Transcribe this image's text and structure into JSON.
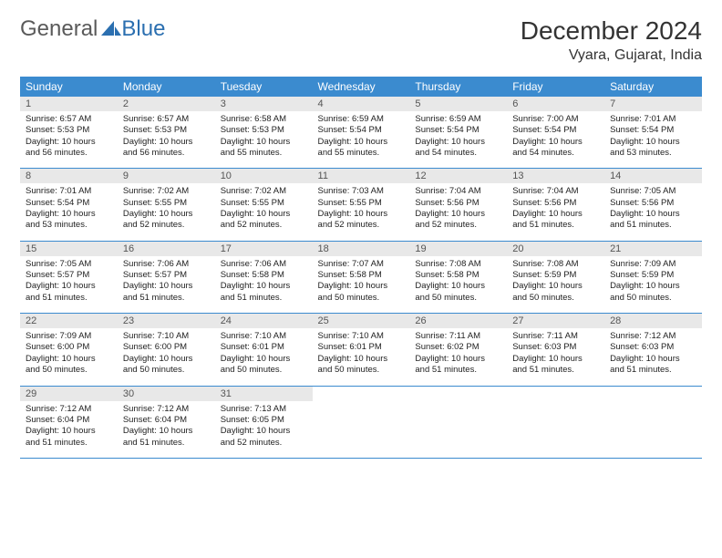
{
  "logo": {
    "text1": "General",
    "text2": "Blue"
  },
  "title": "December 2024",
  "location": "Vyara, Gujarat, India",
  "colors": {
    "header_bg": "#3b8bcf",
    "header_fg": "#ffffff",
    "daynum_bg": "#e8e8e8",
    "row_border": "#3b8bcf",
    "logo_gray": "#5a5a5a",
    "logo_blue": "#2b6fb0"
  },
  "fonts": {
    "title_size": 28,
    "location_size": 16,
    "dow_size": 12,
    "body_size": 9.5
  },
  "dow": [
    "Sunday",
    "Monday",
    "Tuesday",
    "Wednesday",
    "Thursday",
    "Friday",
    "Saturday"
  ],
  "days": [
    {
      "n": 1,
      "sr": "6:57 AM",
      "ss": "5:53 PM",
      "dl": "10 hours and 56 minutes."
    },
    {
      "n": 2,
      "sr": "6:57 AM",
      "ss": "5:53 PM",
      "dl": "10 hours and 56 minutes."
    },
    {
      "n": 3,
      "sr": "6:58 AM",
      "ss": "5:53 PM",
      "dl": "10 hours and 55 minutes."
    },
    {
      "n": 4,
      "sr": "6:59 AM",
      "ss": "5:54 PM",
      "dl": "10 hours and 55 minutes."
    },
    {
      "n": 5,
      "sr": "6:59 AM",
      "ss": "5:54 PM",
      "dl": "10 hours and 54 minutes."
    },
    {
      "n": 6,
      "sr": "7:00 AM",
      "ss": "5:54 PM",
      "dl": "10 hours and 54 minutes."
    },
    {
      "n": 7,
      "sr": "7:01 AM",
      "ss": "5:54 PM",
      "dl": "10 hours and 53 minutes."
    },
    {
      "n": 8,
      "sr": "7:01 AM",
      "ss": "5:54 PM",
      "dl": "10 hours and 53 minutes."
    },
    {
      "n": 9,
      "sr": "7:02 AM",
      "ss": "5:55 PM",
      "dl": "10 hours and 52 minutes."
    },
    {
      "n": 10,
      "sr": "7:02 AM",
      "ss": "5:55 PM",
      "dl": "10 hours and 52 minutes."
    },
    {
      "n": 11,
      "sr": "7:03 AM",
      "ss": "5:55 PM",
      "dl": "10 hours and 52 minutes."
    },
    {
      "n": 12,
      "sr": "7:04 AM",
      "ss": "5:56 PM",
      "dl": "10 hours and 52 minutes."
    },
    {
      "n": 13,
      "sr": "7:04 AM",
      "ss": "5:56 PM",
      "dl": "10 hours and 51 minutes."
    },
    {
      "n": 14,
      "sr": "7:05 AM",
      "ss": "5:56 PM",
      "dl": "10 hours and 51 minutes."
    },
    {
      "n": 15,
      "sr": "7:05 AM",
      "ss": "5:57 PM",
      "dl": "10 hours and 51 minutes."
    },
    {
      "n": 16,
      "sr": "7:06 AM",
      "ss": "5:57 PM",
      "dl": "10 hours and 51 minutes."
    },
    {
      "n": 17,
      "sr": "7:06 AM",
      "ss": "5:58 PM",
      "dl": "10 hours and 51 minutes."
    },
    {
      "n": 18,
      "sr": "7:07 AM",
      "ss": "5:58 PM",
      "dl": "10 hours and 50 minutes."
    },
    {
      "n": 19,
      "sr": "7:08 AM",
      "ss": "5:58 PM",
      "dl": "10 hours and 50 minutes."
    },
    {
      "n": 20,
      "sr": "7:08 AM",
      "ss": "5:59 PM",
      "dl": "10 hours and 50 minutes."
    },
    {
      "n": 21,
      "sr": "7:09 AM",
      "ss": "5:59 PM",
      "dl": "10 hours and 50 minutes."
    },
    {
      "n": 22,
      "sr": "7:09 AM",
      "ss": "6:00 PM",
      "dl": "10 hours and 50 minutes."
    },
    {
      "n": 23,
      "sr": "7:10 AM",
      "ss": "6:00 PM",
      "dl": "10 hours and 50 minutes."
    },
    {
      "n": 24,
      "sr": "7:10 AM",
      "ss": "6:01 PM",
      "dl": "10 hours and 50 minutes."
    },
    {
      "n": 25,
      "sr": "7:10 AM",
      "ss": "6:01 PM",
      "dl": "10 hours and 50 minutes."
    },
    {
      "n": 26,
      "sr": "7:11 AM",
      "ss": "6:02 PM",
      "dl": "10 hours and 51 minutes."
    },
    {
      "n": 27,
      "sr": "7:11 AM",
      "ss": "6:03 PM",
      "dl": "10 hours and 51 minutes."
    },
    {
      "n": 28,
      "sr": "7:12 AM",
      "ss": "6:03 PM",
      "dl": "10 hours and 51 minutes."
    },
    {
      "n": 29,
      "sr": "7:12 AM",
      "ss": "6:04 PM",
      "dl": "10 hours and 51 minutes."
    },
    {
      "n": 30,
      "sr": "7:12 AM",
      "ss": "6:04 PM",
      "dl": "10 hours and 51 minutes."
    },
    {
      "n": 31,
      "sr": "7:13 AM",
      "ss": "6:05 PM",
      "dl": "10 hours and 52 minutes."
    }
  ],
  "labels": {
    "sunrise": "Sunrise:",
    "sunset": "Sunset:",
    "daylight": "Daylight:"
  },
  "layout": {
    "start_dow": 0,
    "weeks": 5,
    "cols": 7
  }
}
